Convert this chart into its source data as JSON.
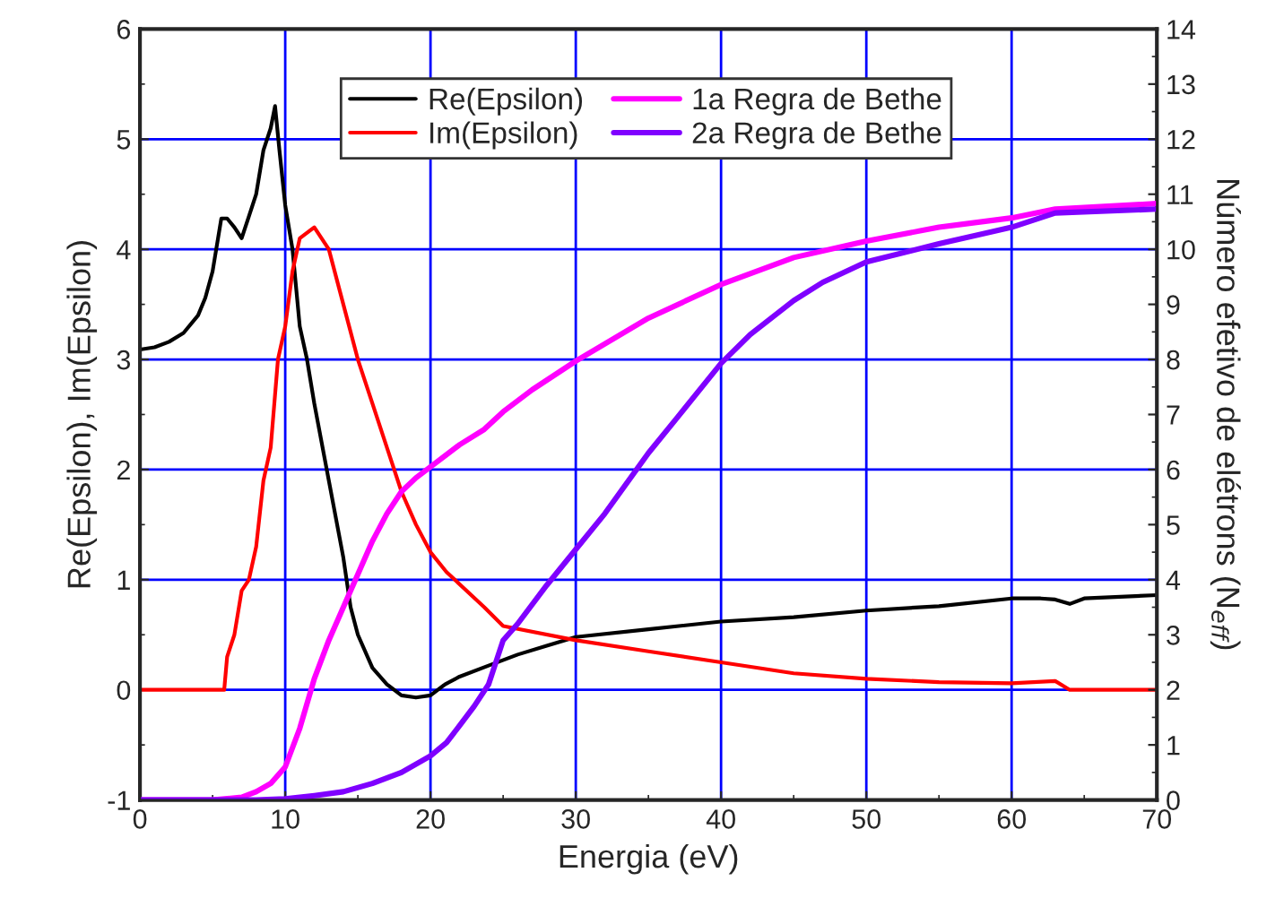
{
  "chart_data": {
    "type": "line",
    "xlabel": "Energia (eV)",
    "ylabel": "Re(Epsilon), Im(Epsilon)",
    "y2label": "Número efetivo de elétrons (N$_{eff}$)",
    "xlim": [
      0,
      70
    ],
    "xticks": [
      0,
      10,
      20,
      30,
      40,
      50,
      60,
      70
    ],
    "ylim": [
      -1,
      6
    ],
    "yticks": [
      -1,
      0,
      1,
      2,
      3,
      4,
      5,
      6
    ],
    "y2lim": [
      0,
      14
    ],
    "y2ticks": [
      0,
      1,
      2,
      3,
      4,
      5,
      6,
      7,
      8,
      9,
      10,
      11,
      12,
      13,
      14
    ],
    "grid": true,
    "legend": "top",
    "marker": "none",
    "line_style": "solid",
    "series": [
      {
        "name": "Re(Epsilon)",
        "color": "#000000",
        "x": [
          0,
          1,
          2,
          3,
          4,
          4.5,
          5,
          5.6,
          6,
          6.5,
          7,
          7.5,
          8,
          8.5,
          9,
          9.3,
          9.6,
          10,
          10.5,
          11,
          11.5,
          12,
          13,
          14,
          14.5,
          15,
          16,
          17,
          18,
          19,
          20,
          21,
          22,
          24,
          26,
          28,
          30,
          35,
          40,
          45,
          50,
          55,
          60,
          62,
          63,
          64,
          65,
          70
        ],
        "values": [
          3.09,
          3.11,
          3.16,
          3.24,
          3.4,
          3.56,
          3.8,
          4.28,
          4.28,
          4.2,
          4.1,
          4.3,
          4.5,
          4.9,
          5.1,
          5.3,
          4.9,
          4.4,
          4.0,
          3.3,
          3.0,
          2.6,
          1.9,
          1.2,
          0.75,
          0.5,
          0.2,
          0.05,
          -0.05,
          -0.07,
          -0.05,
          0.05,
          0.12,
          0.22,
          0.32,
          0.4,
          0.48,
          0.55,
          0.62,
          0.66,
          0.72,
          0.76,
          0.83,
          0.83,
          0.82,
          0.78,
          0.83,
          0.86
        ]
      },
      {
        "name": "Im(Epsilon)",
        "color": "#ff0000",
        "x": [
          0,
          5.8,
          6,
          6.5,
          7,
          7.5,
          8,
          8.5,
          9,
          9.5,
          10,
          10.5,
          11,
          12,
          13,
          14,
          15,
          16,
          17,
          18,
          19,
          20,
          21.1,
          23.7,
          25,
          30,
          35,
          40,
          45,
          50,
          55,
          60,
          63,
          64,
          70
        ],
        "values": [
          0,
          0,
          0.3,
          0.5,
          0.9,
          1.0,
          1.3,
          1.9,
          2.2,
          3.0,
          3.3,
          3.8,
          4.1,
          4.2,
          4.0,
          3.5,
          3.0,
          2.6,
          2.2,
          1.8,
          1.5,
          1.25,
          1.07,
          0.75,
          0.58,
          0.45,
          0.35,
          0.25,
          0.15,
          0.1,
          0.07,
          0.06,
          0.08,
          0,
          0
        ]
      },
      {
        "name": "1a Regra de Bethe",
        "color": "#ff00ff",
        "axis": "y2",
        "x": [
          0,
          5,
          7,
          8,
          9,
          10,
          11,
          12,
          13,
          14,
          15,
          16,
          17,
          18,
          19,
          20,
          22,
          23.7,
          25,
          27,
          30,
          35,
          40,
          45,
          50,
          55,
          60,
          63,
          70
        ],
        "values": [
          0,
          0,
          0.05,
          0.15,
          0.3,
          0.6,
          1.3,
          2.2,
          2.9,
          3.5,
          4.1,
          4.7,
          5.2,
          5.6,
          5.85,
          6.05,
          6.45,
          6.73,
          7.05,
          7.45,
          7.97,
          8.75,
          9.36,
          9.85,
          10.15,
          10.4,
          10.57,
          10.73,
          10.83
        ]
      },
      {
        "name": "2a Regra de Bethe",
        "color": "#7f00ff",
        "axis": "y2",
        "x": [
          0,
          8,
          10,
          12,
          14,
          16,
          18,
          20,
          21.1,
          22,
          23,
          24,
          25,
          26,
          28,
          30,
          32,
          35,
          37,
          40,
          42,
          45,
          47,
          50,
          55,
          60,
          63,
          70
        ],
        "values": [
          0,
          0,
          0.02,
          0.08,
          0.15,
          0.3,
          0.5,
          0.8,
          1.04,
          1.35,
          1.7,
          2.1,
          2.9,
          3.2,
          3.9,
          4.55,
          5.2,
          6.3,
          6.95,
          7.93,
          8.45,
          9.07,
          9.4,
          9.77,
          10.1,
          10.4,
          10.66,
          10.73
        ]
      }
    ]
  }
}
